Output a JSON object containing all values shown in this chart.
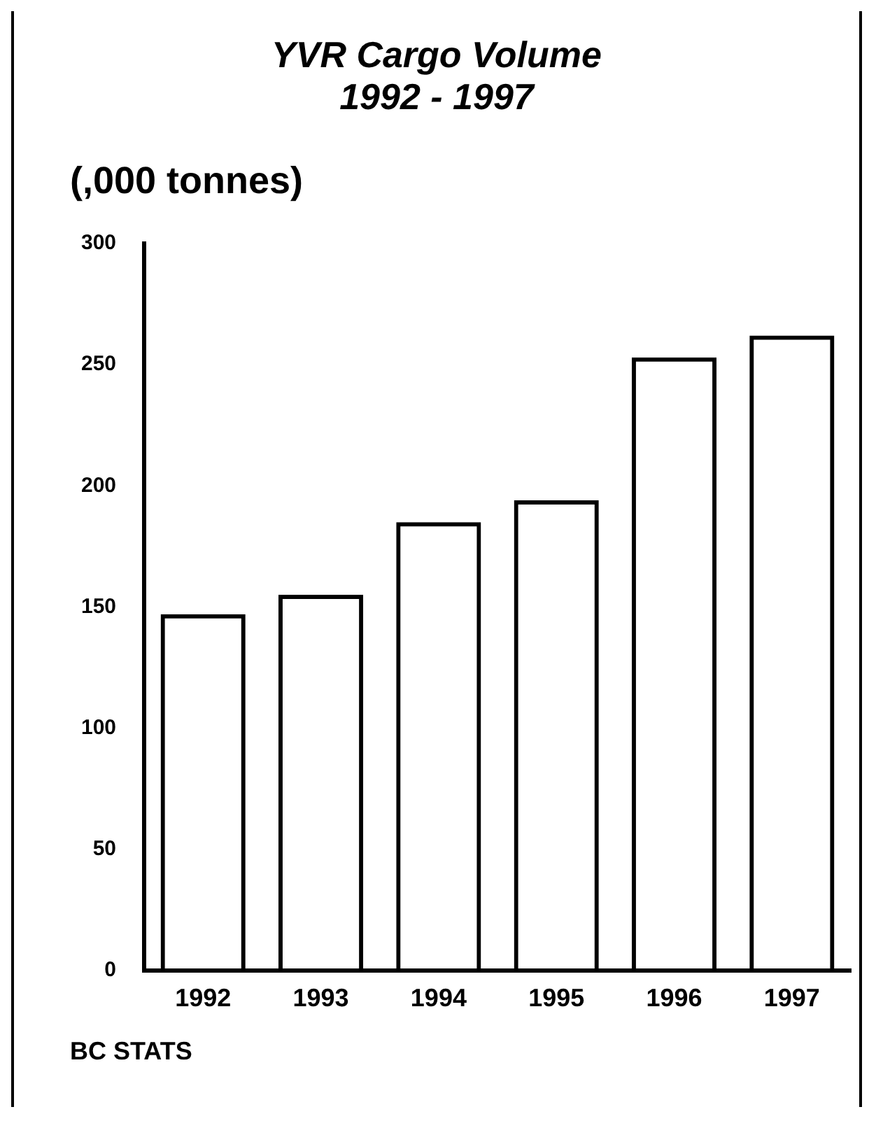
{
  "chart_data": {
    "type": "bar",
    "title": "YVR Cargo Volume\n1992 - 1997",
    "ylabel": "(,000 tonnes)",
    "categories": [
      "1992",
      "1993",
      "1994",
      "1995",
      "1996",
      "1997"
    ],
    "values": [
      147,
      155,
      185,
      194,
      253,
      262
    ],
    "color": "#000000",
    "ylim": [
      0,
      300
    ],
    "yticks": [
      0,
      50,
      100,
      150,
      200,
      250,
      300
    ],
    "grid": false,
    "legend": false,
    "annotations": [
      "BC STATS"
    ]
  }
}
